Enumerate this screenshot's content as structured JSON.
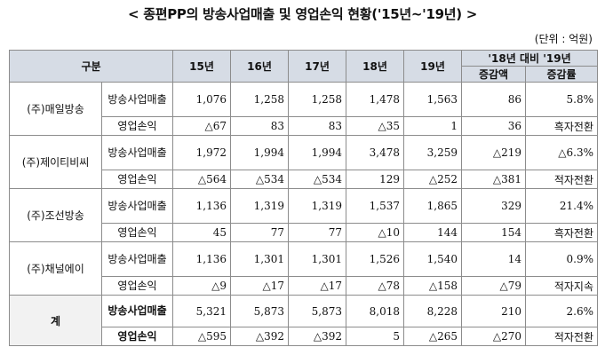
{
  "title": "< 종편PP의 방송사업매출 및 영업손익 현황('15년~'19년) >",
  "unit": "(단위 : 억원)",
  "header": {
    "group": "구분",
    "years": [
      "15년",
      "16년",
      "17년",
      "18년",
      "19년"
    ],
    "compare": "'18년 대비 '19년",
    "diff": "증감액",
    "rate": "증감률"
  },
  "companies": [
    {
      "name": "(주)매일방송",
      "rev_label": "방송사업매출",
      "rev": [
        "1,076",
        "1,258",
        "1,258",
        "1,478",
        "1,563",
        "86",
        "5.8%"
      ],
      "op_label": "영업손익",
      "op": [
        "△67",
        "83",
        "83",
        "△35",
        "1",
        "36",
        "흑자전환"
      ]
    },
    {
      "name": "(주)제이티비씨",
      "rev_label": "방송사업매출",
      "rev": [
        "1,972",
        "1,994",
        "1,994",
        "3,478",
        "3,259",
        "△219",
        "△6.3%"
      ],
      "op_label": "영업손익",
      "op": [
        "△564",
        "△534",
        "△534",
        "129",
        "△252",
        "△381",
        "적자전환"
      ]
    },
    {
      "name": "(주)조선방송",
      "rev_label": "방송사업매출",
      "rev": [
        "1,136",
        "1,319",
        "1,319",
        "1,537",
        "1,865",
        "329",
        "21.4%"
      ],
      "op_label": "영업손익",
      "op": [
        "45",
        "77",
        "77",
        "△10",
        "144",
        "154",
        "흑자전환"
      ]
    },
    {
      "name": "(주)채널에이",
      "rev_label": "방송사업매출",
      "rev": [
        "1,136",
        "1,301",
        "1,301",
        "1,526",
        "1,540",
        "14",
        "0.9%"
      ],
      "op_label": "영업손익",
      "op": [
        "△9",
        "△17",
        "△17",
        "△78",
        "△158",
        "△79",
        "적자지속"
      ]
    }
  ],
  "total": {
    "name": "계",
    "rev_label": "방송사업매출",
    "rev": [
      "5,321",
      "5,873",
      "5,873",
      "8,018",
      "8,228",
      "210",
      "2.6%"
    ],
    "op_label": "영업손익",
    "op": [
      "△595",
      "△392",
      "△392",
      "5",
      "△265",
      "△270",
      "적자전환"
    ]
  }
}
